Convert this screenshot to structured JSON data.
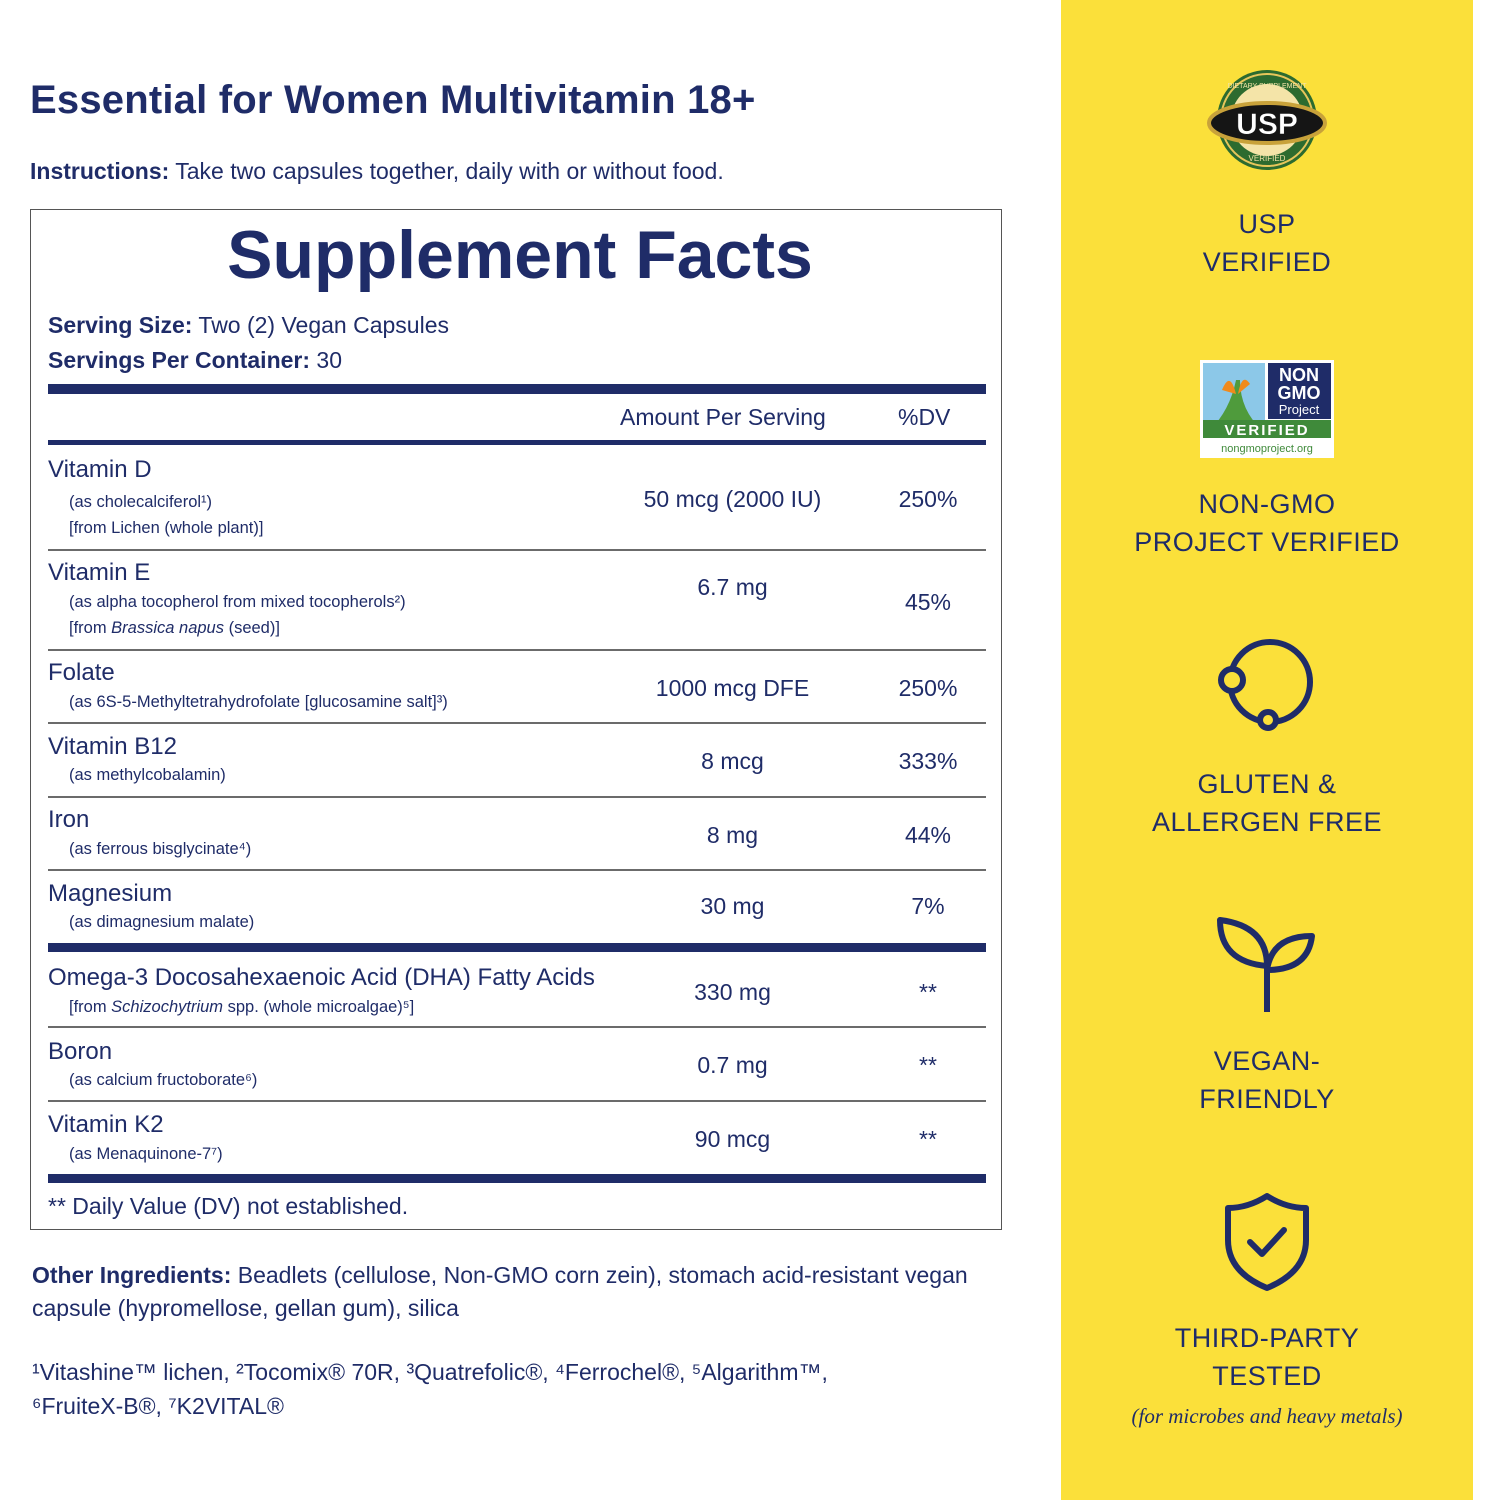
{
  "header": {
    "title": "Essential for Women Multivitamin 18+",
    "instructions_label": "Instructions:",
    "instructions_text": " Take two capsules together, daily with or without food."
  },
  "facts": {
    "title": "Supplement Facts",
    "serving_size_label": "Serving Size:",
    "serving_size_value": " Two (2) Vegan Capsules",
    "servings_label": "Servings Per Container:",
    "servings_value": " 30",
    "col_amount": "Amount Per Serving",
    "col_dv": "%DV",
    "rows": [
      {
        "name": "Vitamin D",
        "sub1": "(as cholecalciferol¹)",
        "sub2": "[from Lichen (whole plant)]",
        "amount": "50 mcg (2000 IU)",
        "dv": "250%"
      },
      {
        "name": "Vitamin E",
        "sub1": "(as alpha tocopherol from mixed tocopherols²)",
        "sub2_pre": "[from ",
        "sub2_italic": "Brassica napus",
        "sub2_post": " (seed)]",
        "amount": "6.7 mg",
        "dv": "45%"
      },
      {
        "name": "Folate",
        "sub1": "(as 6S-5-Methyltetrahydrofolate [glucosamine salt]³)",
        "amount": "1000 mcg DFE",
        "dv": "250%"
      },
      {
        "name": "Vitamin B12",
        "sub1": "(as methylcobalamin)",
        "amount": "8 mcg",
        "dv": "333%"
      },
      {
        "name": "Iron",
        "sub1": "(as ferrous bisglycinate⁴)",
        "amount": "8 mg",
        "dv": "44%"
      },
      {
        "name": "Magnesium",
        "sub1": "(as dimagnesium malate)",
        "amount": "30 mg",
        "dv": "7%"
      },
      {
        "name": "Omega-3 Docosahexaenoic Acid (DHA) Fatty Acids",
        "sub1_pre": "[from ",
        "sub1_italic": "Schizochytrium",
        "sub1_post": " spp. (whole microalgae)⁵]",
        "amount": "330 mg",
        "dv": "**"
      },
      {
        "name": "Boron",
        "sub1": "(as calcium fructoborate⁶)",
        "amount": "0.7 mg",
        "dv": "**"
      },
      {
        "name": "Vitamin K2",
        "sub1": "(as Menaquinone-7⁷)",
        "amount": "90 mcg",
        "dv": "**"
      }
    ],
    "footnote": "** Daily Value (DV) not established."
  },
  "other_ingredients": {
    "label": "Other Ingredients:",
    "text": " Beadlets (cellulose, Non-GMO corn zein), stomach acid-resistant vegan capsule (hypromellose, gellan gum), silica"
  },
  "trademarks": {
    "line1": "¹Vitashine™ lichen, ²Tocomix® 70R, ³Quatrefolic®, ⁴Ferrochel®, ⁵Algarithm™,",
    "line2": "⁶FruiteX-B®, ⁷K2VITAL®"
  },
  "badges": {
    "usp_logo_text": "USP",
    "usp_ring_top": "DIETARY SUPPLEMENT",
    "usp_ring_bottom": "VERIFIED",
    "usp_line1": "USP",
    "usp_line2": "VERIFIED",
    "nongmo_logo_line1": "NON",
    "nongmo_logo_line2": "GMO",
    "nongmo_logo_line3": "Project",
    "nongmo_logo_verified": "VERIFIED",
    "nongmo_logo_url": "nongmoproject.org",
    "nongmo_line1": "NON-GMO",
    "nongmo_line2": "PROJECT VERIFIED",
    "gluten_line1": "GLUTEN &",
    "gluten_line2": "ALLERGEN FREE",
    "vegan_line1": "VEGAN-",
    "vegan_line2": "FRIENDLY",
    "tested_line1": "THIRD-PARTY",
    "tested_line2": "TESTED",
    "tested_note": "(for microbes and heavy metals)"
  },
  "colors": {
    "navy": "#1f2c68",
    "yellow": "#fbe03a",
    "usp_gold": "#c8a23a",
    "nongmo_green": "#3f8a3a"
  }
}
